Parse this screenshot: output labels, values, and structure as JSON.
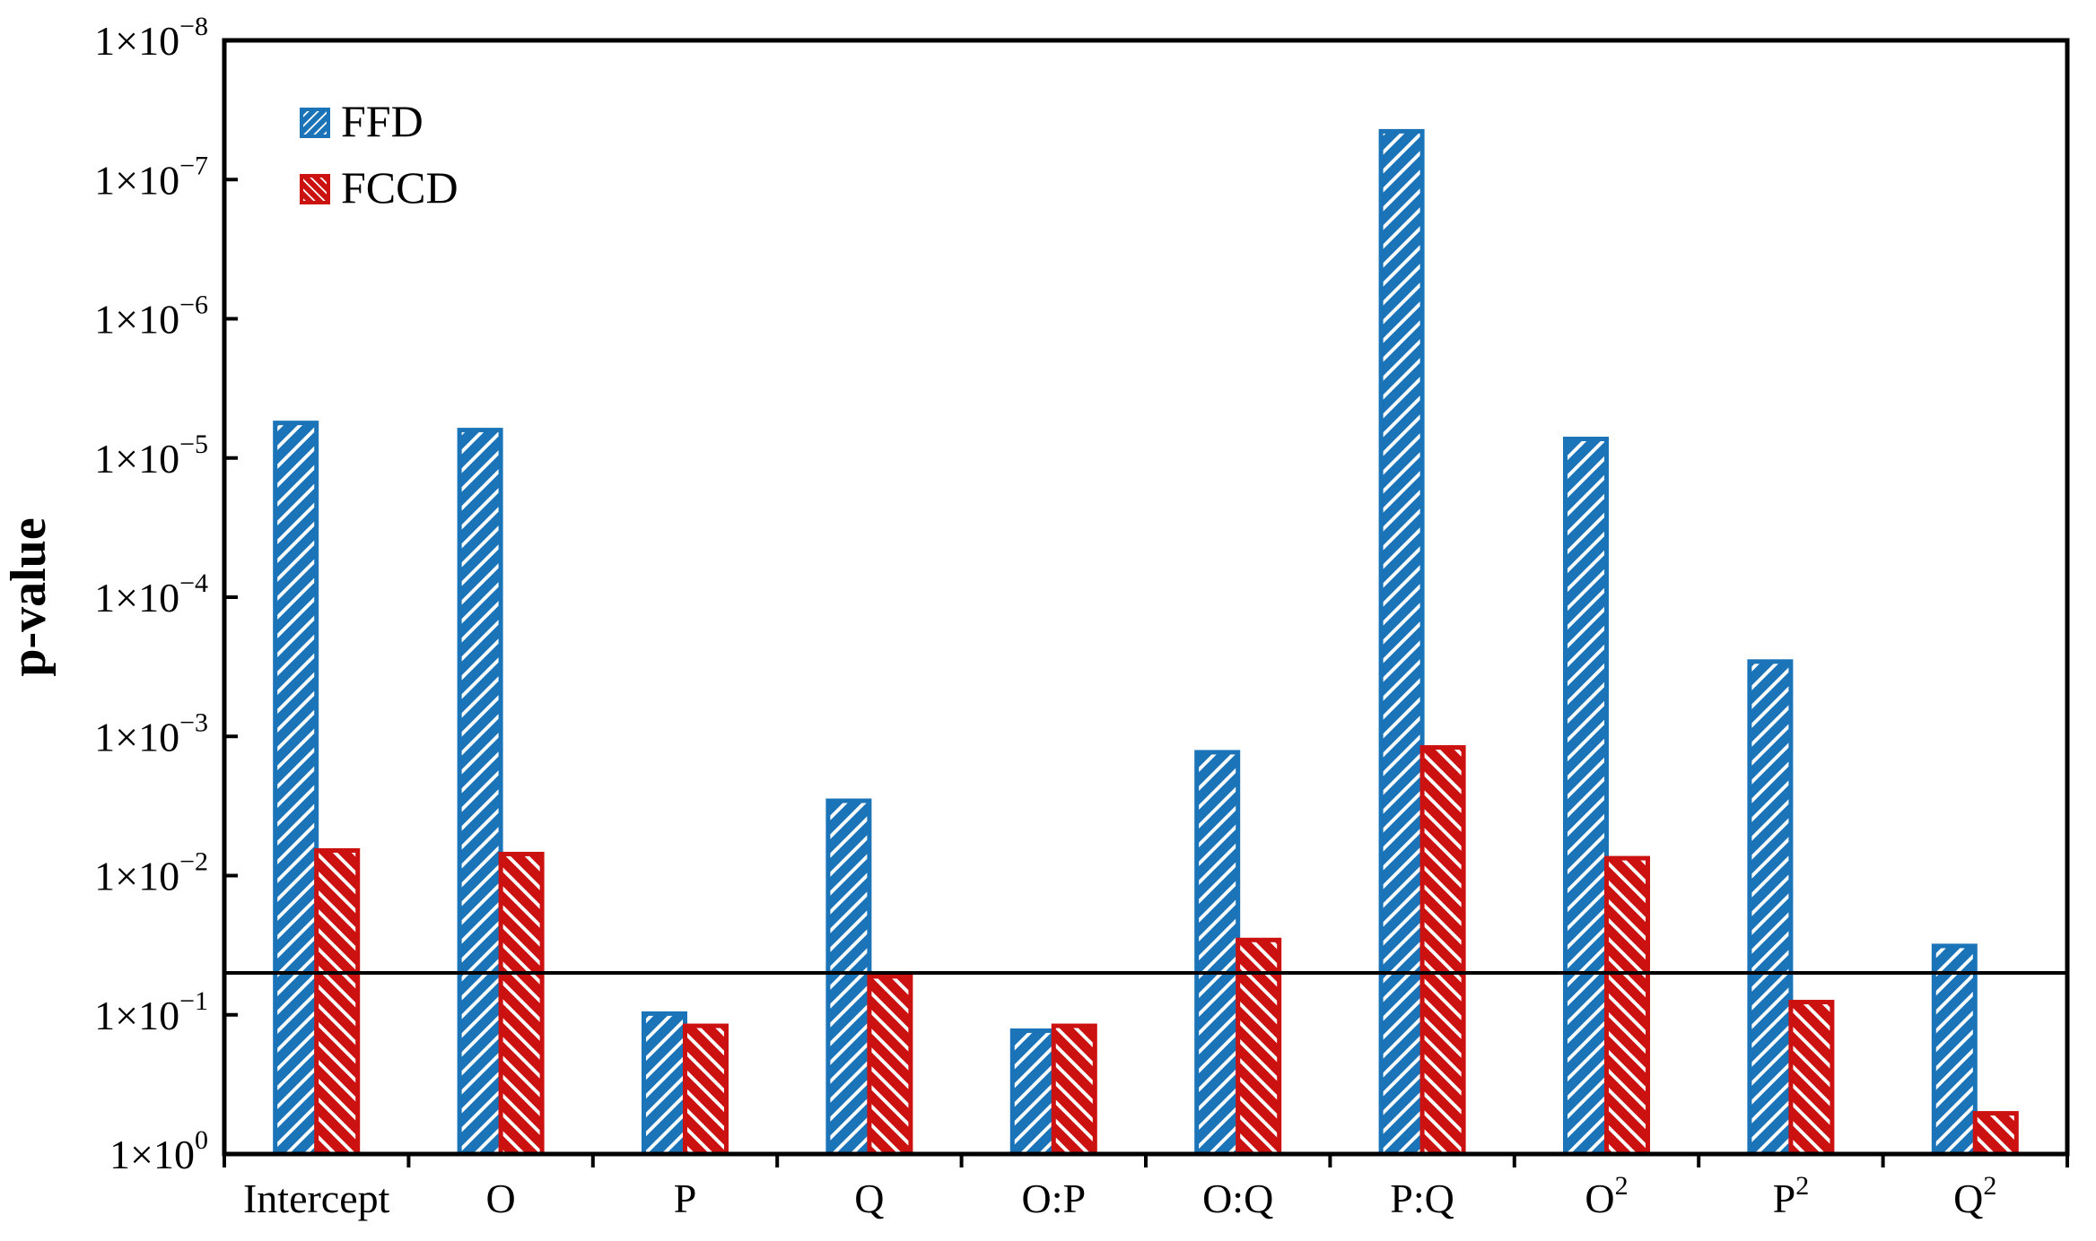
{
  "chart_data": {
    "type": "bar",
    "title": "",
    "ylabel": "p-value",
    "xlabel": "",
    "x_axis": {
      "categories": [
        {
          "base": "Intercept",
          "sup": ""
        },
        {
          "base": "O",
          "sup": ""
        },
        {
          "base": "P",
          "sup": ""
        },
        {
          "base": "Q",
          "sup": ""
        },
        {
          "base": "O:P",
          "sup": ""
        },
        {
          "base": "O:Q",
          "sup": ""
        },
        {
          "base": "P:Q",
          "sup": ""
        },
        {
          "base": "O",
          "sup": "2"
        },
        {
          "base": "P",
          "sup": "2"
        },
        {
          "base": "Q",
          "sup": "2"
        }
      ]
    },
    "y_axis": {
      "scale": "log",
      "inverted": true,
      "top_exponent": -8,
      "bottom_exponent": 0,
      "ticks": [
        {
          "base": "1×10",
          "sup": "−8",
          "exp": -8
        },
        {
          "base": "1×10",
          "sup": "−7",
          "exp": -7
        },
        {
          "base": "1×10",
          "sup": "−6",
          "exp": -6
        },
        {
          "base": "1×10",
          "sup": "−5",
          "exp": -5
        },
        {
          "base": "1×10",
          "sup": "−4",
          "exp": -4
        },
        {
          "base": "1×10",
          "sup": "−3",
          "exp": -3
        },
        {
          "base": "1×10",
          "sup": "−2",
          "exp": -2
        },
        {
          "base": "1×10",
          "sup": "−1",
          "exp": -1
        },
        {
          "base": "1×10",
          "sup": "0",
          "exp": 0
        }
      ]
    },
    "series": [
      {
        "name": "FFD",
        "color": "#1b73b8",
        "hatch": "/",
        "values": [
          5.6e-06,
          6.3e-06,
          0.098,
          0.0029,
          0.13,
          0.0013,
          4.5e-08,
          7.3e-06,
          0.00029,
          0.032
        ]
      },
      {
        "name": "FCCD",
        "color": "#cc1111",
        "hatch": "\\",
        "values": [
          0.0066,
          0.007,
          0.12,
          0.053,
          0.12,
          0.029,
          0.0012,
          0.0075,
          0.081,
          0.51
        ]
      }
    ],
    "reference_line": {
      "value": 0.05,
      "color": "#000000"
    },
    "legend": {
      "position": "top-left"
    }
  }
}
